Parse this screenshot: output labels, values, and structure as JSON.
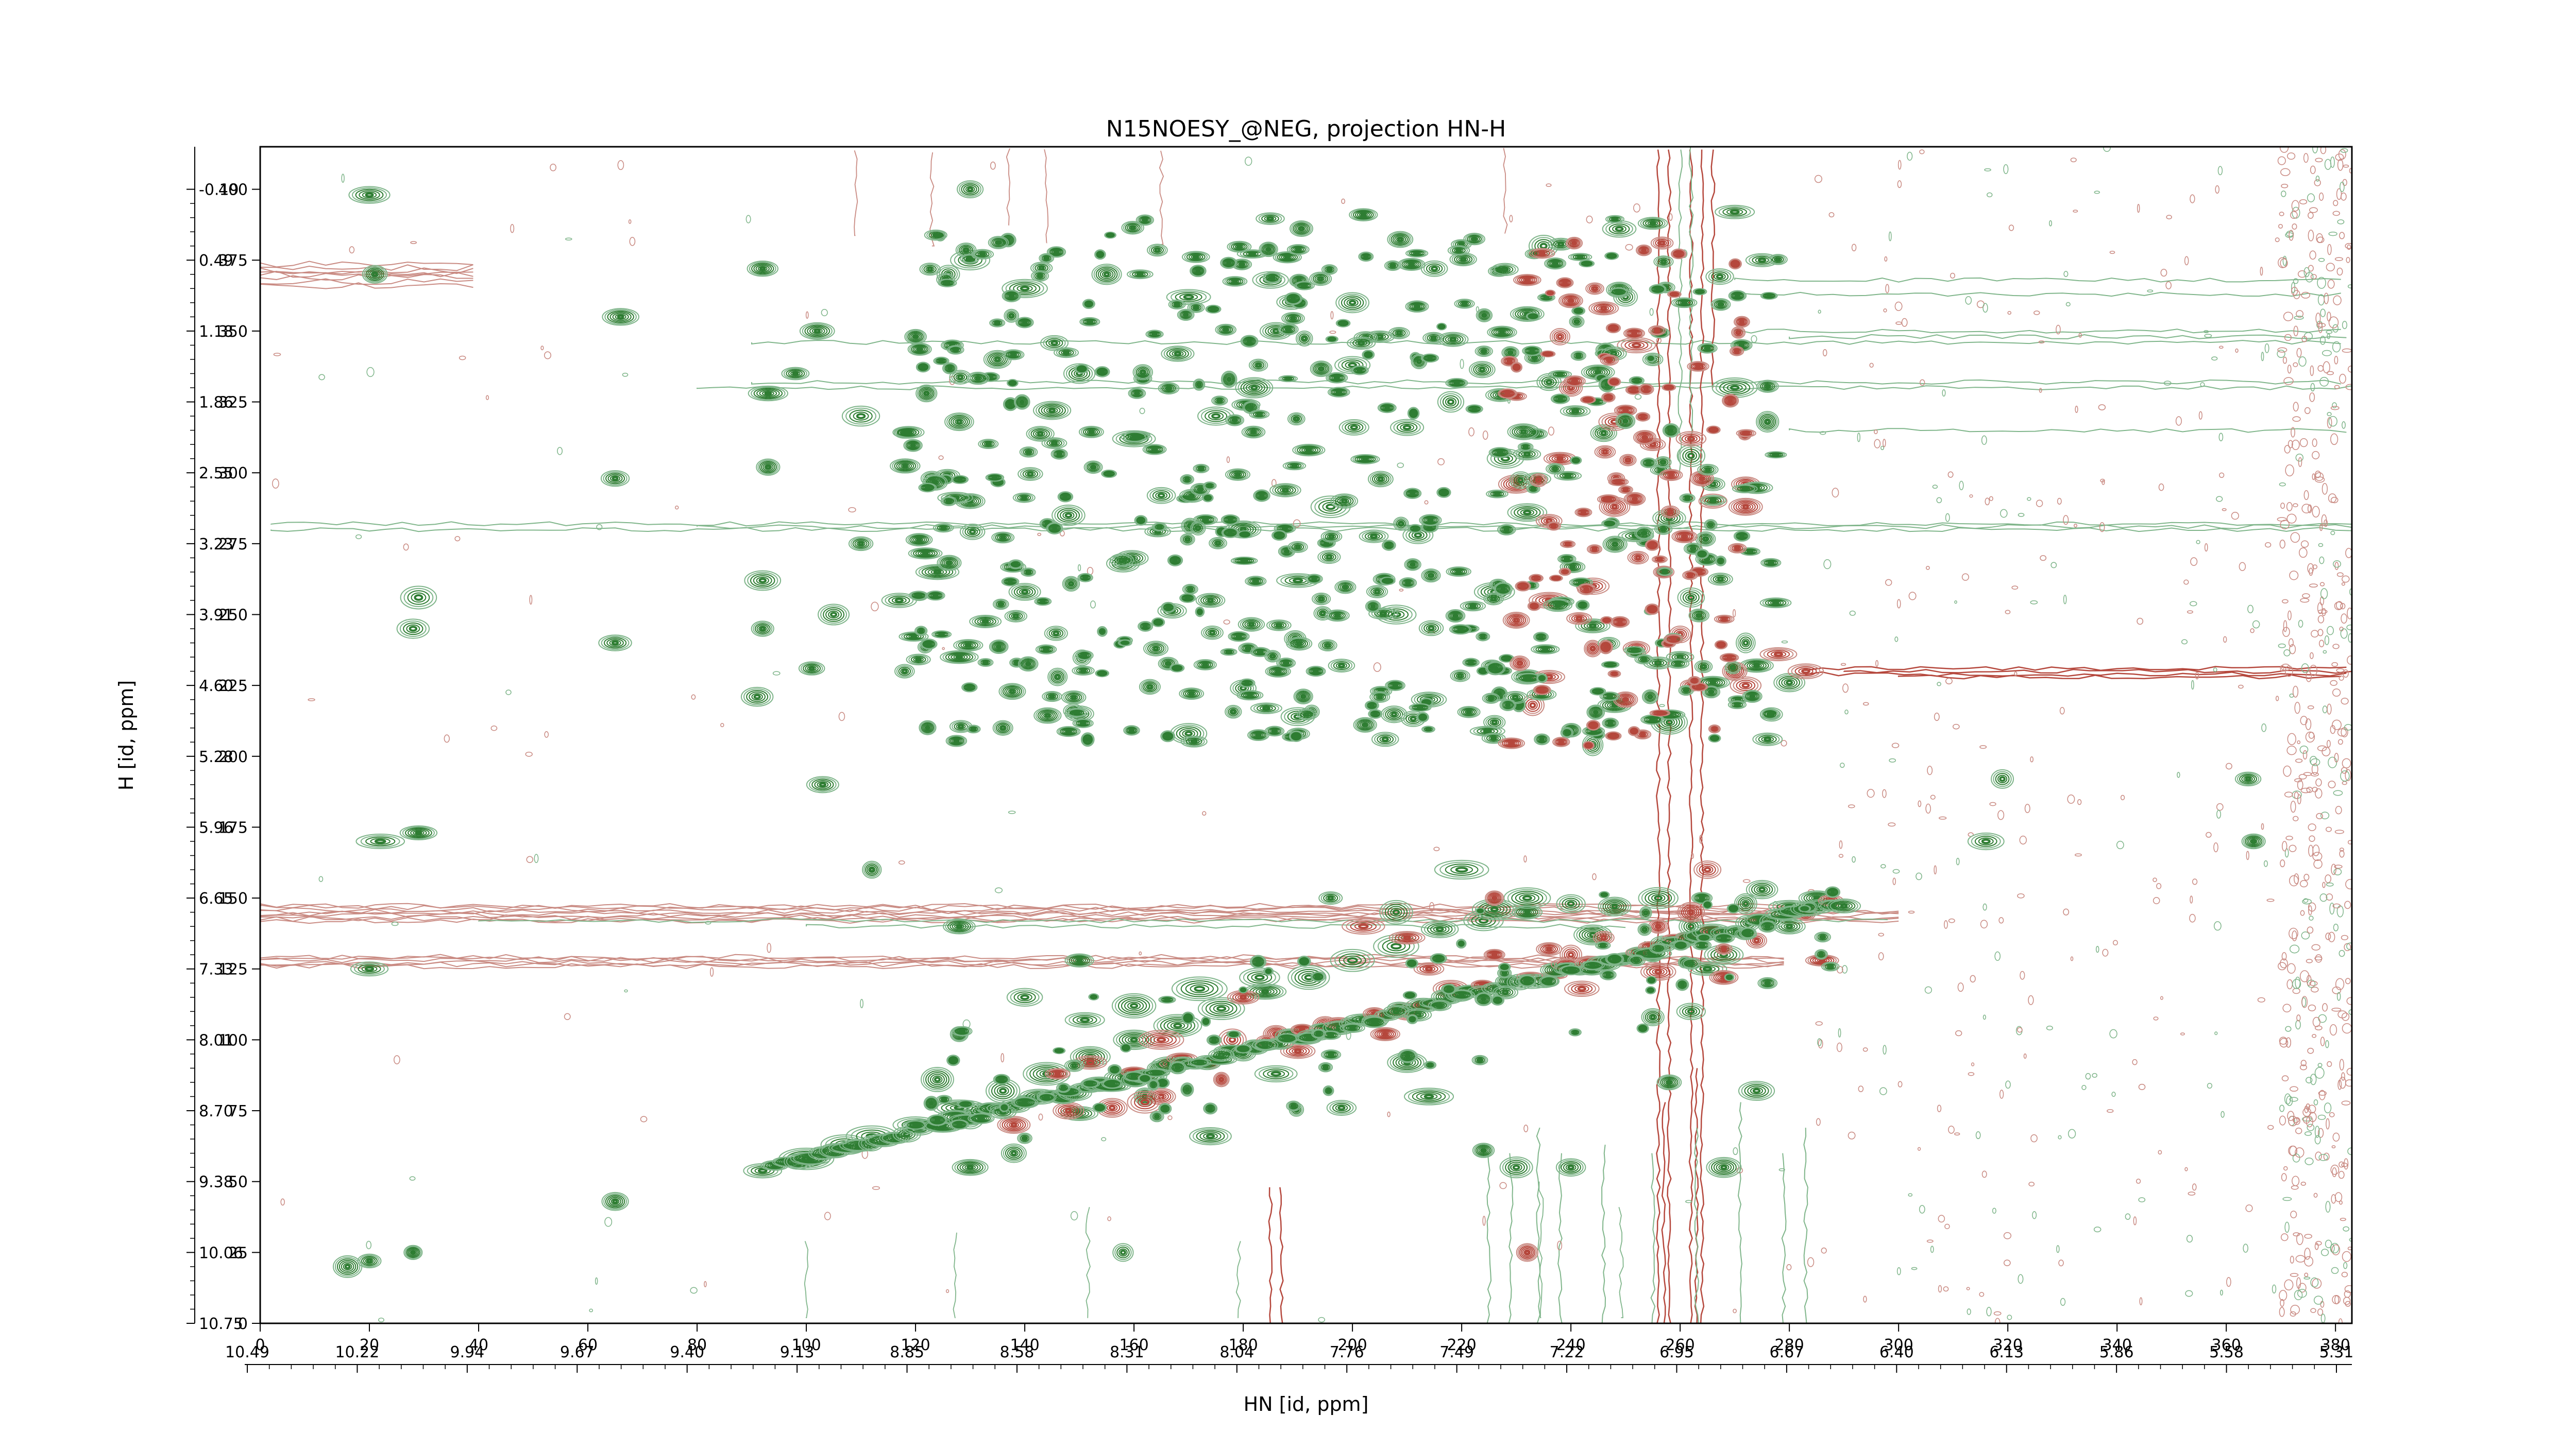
{
  "chart_data": {
    "type": "contour",
    "title": "N15NOESY_@NEG, projection HN-H",
    "xlabel": "HN [id, ppm]",
    "ylabel": "H [id, ppm]",
    "x_index_range": [
      0,
      383
    ],
    "y_index_range": [
      0,
      415
    ],
    "x_index_ticks": [
      0,
      20,
      40,
      60,
      80,
      100,
      120,
      140,
      160,
      180,
      200,
      220,
      240,
      260,
      280,
      300,
      320,
      340,
      360,
      380
    ],
    "y_index_ticks": [
      0,
      25,
      50,
      75,
      100,
      125,
      150,
      175,
      200,
      225,
      250,
      275,
      300,
      325,
      350,
      375,
      400
    ],
    "x_ppm_ticks": [
      "10.49",
      "10.22",
      "9.94",
      "9.67",
      "9.40",
      "9.13",
      "8.85",
      "8.58",
      "8.31",
      "8.04",
      "7.76",
      "7.49",
      "7.22",
      "6.95",
      "6.67",
      "6.40",
      "6.13",
      "5.86",
      "5.58",
      "5.31"
    ],
    "y_ppm_ticks": [
      "10.75",
      "10.06",
      "9.38",
      "8.70",
      "8.01",
      "7.33",
      "6.65",
      "5.96",
      "5.28",
      "4.60",
      "3.91",
      "3.23",
      "2.55",
      "1.86",
      "1.18",
      "0.49",
      "-0.19"
    ],
    "colors": {
      "positive": "#2e7d32",
      "positive_light": "#7fb58a",
      "negative": "#b5473c",
      "negative_light": "#c98a82"
    },
    "series": [
      {
        "name": "positive",
        "peaks": [
          [
            20,
            22
          ],
          [
            28,
            25
          ],
          [
            16,
            20
          ],
          [
            65,
            43
          ],
          [
            20,
            125
          ],
          [
            22,
            170
          ],
          [
            29,
            173
          ],
          [
            28,
            245
          ],
          [
            29,
            256
          ],
          [
            65,
            240
          ],
          [
            66,
            355
          ],
          [
            65,
            298
          ],
          [
            20,
            398
          ],
          [
            21,
            370
          ],
          [
            92,
            372
          ],
          [
            93,
            328
          ],
          [
            93,
            302
          ],
          [
            92,
            245
          ],
          [
            91,
            221
          ],
          [
            101,
            231
          ],
          [
            103,
            190
          ],
          [
            100,
            58
          ],
          [
            107,
            63
          ],
          [
            112,
            66
          ],
          [
            120,
            70
          ],
          [
            128,
            76
          ],
          [
            136,
            82
          ],
          [
            144,
            88
          ],
          [
            152,
            94
          ],
          [
            160,
            100
          ],
          [
            168,
            105
          ],
          [
            176,
            111
          ],
          [
            184,
            117
          ],
          [
            192,
            122
          ],
          [
            200,
            128
          ],
          [
            208,
            133
          ],
          [
            216,
            139
          ],
          [
            224,
            142
          ],
          [
            232,
            145
          ],
          [
            240,
            148
          ],
          [
            248,
            147
          ],
          [
            256,
            150
          ],
          [
            264,
            150
          ],
          [
            272,
            148
          ],
          [
            280,
            147
          ],
          [
            285,
            150
          ],
          [
            275,
            153
          ],
          [
            268,
            130
          ],
          [
            276,
            120
          ],
          [
            262,
            110
          ],
          [
            255,
            108
          ],
          [
            232,
            150
          ],
          [
            226,
            146
          ],
          [
            208,
            145
          ],
          [
            196,
            150
          ],
          [
            183,
            122
          ],
          [
            172,
            118
          ],
          [
            160,
            112
          ],
          [
            151,
            107
          ],
          [
            140,
            115
          ],
          [
            128,
            102
          ],
          [
            124,
            86
          ],
          [
            130,
            72
          ],
          [
            138,
            60
          ],
          [
            150,
            74
          ],
          [
            162,
            80
          ],
          [
            174,
            66
          ],
          [
            186,
            88
          ],
          [
            198,
            76
          ],
          [
            210,
            92
          ],
          [
            214,
            80
          ],
          [
            224,
            61
          ],
          [
            230,
            55
          ],
          [
            240,
            55
          ],
          [
            258,
            85
          ],
          [
            274,
            82
          ],
          [
            268,
            55
          ],
          [
            158,
            25
          ],
          [
            130,
            55
          ],
          [
            112,
            160
          ],
          [
            128,
            140
          ],
          [
            150,
            128
          ],
          [
            255,
            130
          ],
          [
            265,
            125
          ],
          [
            280,
            140
          ],
          [
            262,
            140
          ],
          [
            319,
            192
          ],
          [
            316,
            170
          ],
          [
            364,
            192
          ],
          [
            365,
            170
          ],
          [
            130,
            400
          ],
          [
            202,
            391
          ],
          [
            235,
            380
          ],
          [
            255,
            388
          ],
          [
            270,
            392
          ],
          [
            275,
            375
          ],
          [
            220,
            160
          ],
          [
            244,
            137
          ],
          [
            126,
            370
          ],
          [
            140,
            365
          ],
          [
            155,
            370
          ],
          [
            170,
            362
          ],
          [
            185,
            368
          ],
          [
            200,
            360
          ],
          [
            215,
            372
          ],
          [
            232,
            356
          ],
          [
            250,
            362
          ],
          [
            135,
            340
          ],
          [
            150,
            335
          ],
          [
            168,
            342
          ],
          [
            182,
            330
          ],
          [
            200,
            338
          ],
          [
            218,
            325
          ],
          [
            236,
            332
          ],
          [
            255,
            340
          ],
          [
            270,
            330
          ],
          [
            128,
            318
          ],
          [
            145,
            322
          ],
          [
            160,
            312
          ],
          [
            175,
            320
          ],
          [
            192,
            308
          ],
          [
            210,
            316
          ],
          [
            228,
            305
          ],
          [
            246,
            314
          ],
          [
            262,
            306
          ],
          [
            276,
            318
          ],
          [
            130,
            290
          ],
          [
            148,
            285
          ],
          [
            165,
            292
          ],
          [
            180,
            280
          ],
          [
            196,
            288
          ],
          [
            212,
            278
          ],
          [
            232,
            286
          ],
          [
            258,
            284
          ],
          [
            266,
            296
          ],
          [
            124,
            265
          ],
          [
            140,
            258
          ],
          [
            158,
            268
          ],
          [
            174,
            255
          ],
          [
            190,
            262
          ],
          [
            208,
            250
          ],
          [
            226,
            258
          ],
          [
            244,
            246
          ],
          [
            262,
            256
          ],
          [
            272,
            240
          ],
          [
            128,
            235
          ],
          [
            146,
            228
          ],
          [
            164,
            238
          ],
          [
            180,
            224
          ],
          [
            198,
            232
          ],
          [
            214,
            220
          ],
          [
            232,
            228
          ],
          [
            248,
            218
          ],
          [
            266,
            226
          ],
          [
            274,
            232
          ],
          [
            136,
            210
          ],
          [
            150,
            215
          ],
          [
            170,
            208
          ],
          [
            190,
            214
          ],
          [
            206,
            206
          ],
          [
            226,
            212
          ],
          [
            244,
            204
          ],
          [
            258,
            212
          ],
          [
            276,
            206
          ],
          [
            280,
            226
          ],
          [
            120,
            348
          ],
          [
            122,
            328
          ],
          [
            123,
            298
          ],
          [
            117,
            255
          ],
          [
            110,
            275
          ],
          [
            130,
            375
          ],
          [
            186,
            350
          ],
          [
            205,
            348
          ],
          [
            260,
            235
          ],
          [
            110,
            320
          ],
          [
            92,
            262
          ],
          [
            118,
            230
          ],
          [
            105,
            250
          ],
          [
            98,
            335
          ],
          [
            102,
            350
          ]
        ]
      },
      {
        "name": "negative",
        "peaks": [
          [
            232,
            368
          ],
          [
            238,
            348
          ],
          [
            246,
            358
          ],
          [
            252,
            345
          ],
          [
            240,
            330
          ],
          [
            250,
            322
          ],
          [
            238,
            305
          ],
          [
            255,
            310
          ],
          [
            264,
            298
          ],
          [
            272,
            296
          ],
          [
            236,
            283
          ],
          [
            248,
            288
          ],
          [
            230,
            296
          ],
          [
            252,
            238
          ],
          [
            260,
            243
          ],
          [
            262,
            225
          ],
          [
            272,
            225
          ],
          [
            270,
            230
          ],
          [
            244,
            260
          ],
          [
            236,
            255
          ],
          [
            230,
            248
          ],
          [
            236,
            228
          ],
          [
            244,
            238
          ],
          [
            266,
            290
          ],
          [
            233,
            218
          ],
          [
            256,
            140
          ],
          [
            262,
            145
          ],
          [
            268,
            132
          ],
          [
            274,
            135
          ],
          [
            286,
            128
          ],
          [
            256,
            124
          ],
          [
            268,
            122
          ],
          [
            242,
            118
          ],
          [
            236,
            132
          ],
          [
            246,
            136
          ],
          [
            226,
            130
          ],
          [
            218,
            118
          ],
          [
            210,
            110
          ],
          [
            206,
            102
          ],
          [
            190,
            96
          ],
          [
            176,
            86
          ],
          [
            165,
            80
          ],
          [
            156,
            76
          ],
          [
            146,
            88
          ],
          [
            138,
            70
          ],
          [
            195,
            105
          ],
          [
            186,
            102
          ],
          [
            210,
            136
          ],
          [
            174,
            92
          ],
          [
            162,
            78
          ],
          [
            232,
            25
          ],
          [
            250,
            220
          ],
          [
            240,
            130
          ],
          [
            214,
            125
          ],
          [
            178,
            100
          ],
          [
            152,
            92
          ],
          [
            278,
            236
          ],
          [
            248,
            318
          ],
          [
            262,
            312
          ],
          [
            272,
            288
          ],
          [
            226,
            150
          ],
          [
            202,
            140
          ],
          [
            180,
            115
          ],
          [
            165,
            100
          ],
          [
            148,
            75
          ],
          [
            283,
            145
          ],
          [
            265,
            160
          ],
          [
            283,
            230
          ],
          [
            257,
            265
          ]
        ]
      }
    ]
  }
}
